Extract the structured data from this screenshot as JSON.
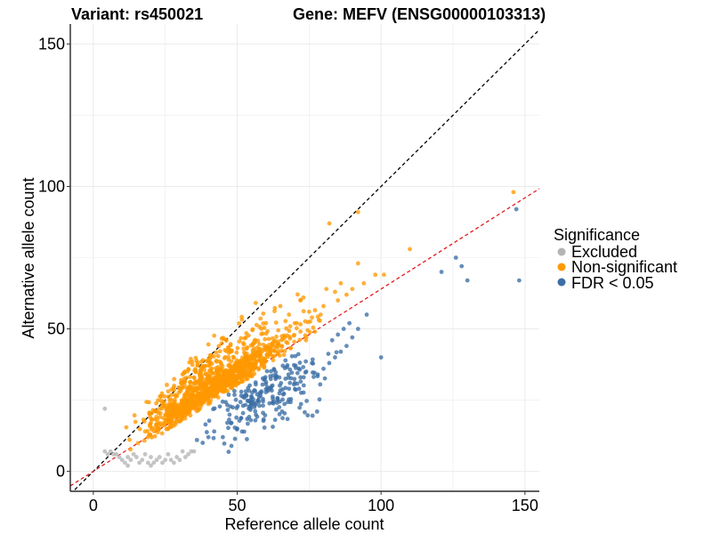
{
  "chart_data": {
    "type": "scatter",
    "title_left": "Variant: rs450021",
    "title_right": "Gene: MEFV (ENSG00000103313)",
    "xlabel": "Reference allele count",
    "ylabel": "Alternative allele count",
    "xlim": [
      -8,
      155
    ],
    "ylim": [
      -7,
      157
    ],
    "xticks": [
      0,
      50,
      100,
      150
    ],
    "yticks": [
      0,
      50,
      100,
      150
    ],
    "grid": true,
    "reference_lines": [
      {
        "name": "identity",
        "slope": 1.0,
        "intercept": 0,
        "color": "#000000",
        "dash": "dashed"
      },
      {
        "name": "expected-ratio",
        "slope": 0.64,
        "intercept": 0,
        "color": "#e41a1c",
        "dash": "dashed"
      }
    ],
    "legend": {
      "title": "Significance",
      "position": "right",
      "entries": [
        {
          "label": "Excluded",
          "color": "#b3b3b3"
        },
        {
          "label": "Non-significant",
          "color": "#ff9900"
        },
        {
          "label": "FDR < 0.05",
          "color": "#3b6ea5"
        }
      ]
    },
    "series": [
      {
        "name": "Excluded",
        "color": "#b3b3b3",
        "points": [
          [
            4,
            22
          ],
          [
            4,
            7
          ],
          [
            5,
            6
          ],
          [
            6,
            7
          ],
          [
            7,
            6
          ],
          [
            8,
            6
          ],
          [
            9,
            5
          ],
          [
            10,
            4
          ],
          [
            11,
            3
          ],
          [
            12,
            2
          ],
          [
            12,
            5
          ],
          [
            13,
            4
          ],
          [
            14,
            6
          ],
          [
            15,
            5
          ],
          [
            16,
            3
          ],
          [
            17,
            4
          ],
          [
            18,
            6
          ],
          [
            19,
            3
          ],
          [
            20,
            2
          ],
          [
            20,
            5
          ],
          [
            21,
            3
          ],
          [
            22,
            4
          ],
          [
            23,
            5
          ],
          [
            24,
            3
          ],
          [
            25,
            4
          ],
          [
            26,
            6
          ],
          [
            27,
            4
          ],
          [
            28,
            3
          ],
          [
            29,
            5
          ],
          [
            30,
            4
          ],
          [
            31,
            7
          ],
          [
            32,
            5
          ],
          [
            33,
            6
          ],
          [
            34,
            7
          ],
          [
            35,
            7
          ]
        ]
      },
      {
        "name": "Non-significant",
        "color": "#ff9900",
        "clusters": [
          {
            "center": [
              40,
              27
            ],
            "spread": [
              9,
              8
            ],
            "count": 700,
            "seed": 11
          },
          {
            "center": [
              55,
              36
            ],
            "spread": [
              9,
              8
            ],
            "count": 300,
            "seed": 23
          },
          {
            "center": [
              28,
              18
            ],
            "spread": [
              5,
              5
            ],
            "count": 150,
            "seed": 37
          }
        ],
        "points": [
          [
            82,
            87
          ],
          [
            92,
            91
          ],
          [
            146,
            98
          ],
          [
            110,
            78
          ],
          [
            98,
            69
          ],
          [
            84,
            63
          ],
          [
            92,
            73
          ],
          [
            75,
            56
          ],
          [
            80,
            58
          ],
          [
            88,
            62
          ],
          [
            90,
            64
          ],
          [
            85,
            60
          ],
          [
            79,
            55
          ],
          [
            76,
            54
          ],
          [
            70,
            52
          ],
          [
            72,
            60
          ],
          [
            65,
            58
          ],
          [
            60,
            52
          ],
          [
            68,
            55
          ],
          [
            73,
            61
          ],
          [
            81,
            64
          ],
          [
            86,
            66
          ],
          [
            94,
            66
          ],
          [
            101,
            69
          ],
          [
            77,
            49
          ],
          [
            74,
            47
          ],
          [
            20,
            17
          ],
          [
            18,
            14
          ],
          [
            22,
            21
          ],
          [
            24,
            23
          ],
          [
            26,
            15
          ],
          [
            19,
            12
          ]
        ]
      },
      {
        "name": "FDR < 0.05",
        "color": "#3b6ea5",
        "clusters": [
          {
            "center": [
              60,
              27
            ],
            "spread": [
              10,
              6
            ],
            "count": 220,
            "seed": 53
          }
        ],
        "points": [
          [
            121,
            70
          ],
          [
            126,
            75
          ],
          [
            128,
            72
          ],
          [
            130,
            67
          ],
          [
            147,
            92
          ],
          [
            148,
            67
          ],
          [
            100,
            40
          ],
          [
            95,
            55
          ],
          [
            92,
            50
          ],
          [
            90,
            47
          ],
          [
            88,
            44
          ],
          [
            86,
            42
          ],
          [
            84,
            40
          ],
          [
            82,
            38
          ],
          [
            80,
            36
          ],
          [
            78,
            34
          ],
          [
            85,
            48
          ],
          [
            83,
            46
          ],
          [
            87,
            50
          ],
          [
            89,
            52
          ],
          [
            76,
            38
          ],
          [
            74,
            35
          ],
          [
            72,
            33
          ],
          [
            70,
            31
          ],
          [
            68,
            29
          ],
          [
            66,
            27
          ],
          [
            64,
            25
          ],
          [
            45,
            12
          ],
          [
            42,
            14
          ],
          [
            40,
            12
          ],
          [
            38,
            10
          ],
          [
            36,
            11
          ],
          [
            50,
            15
          ],
          [
            48,
            17
          ]
        ]
      }
    ]
  }
}
